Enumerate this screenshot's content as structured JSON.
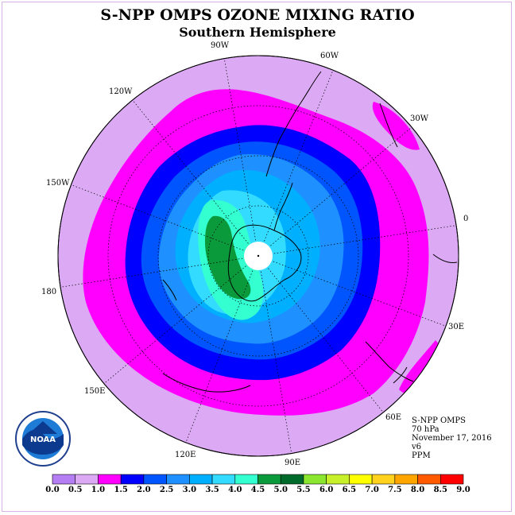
{
  "title": "S-NPP OMPS OZONE MIXING RATIO",
  "subtitle": "Southern Hemisphere",
  "longitude_labels": [
    "90W",
    "60W",
    "30W",
    "0",
    "30E",
    "60E",
    "90E",
    "120E",
    "150E",
    "180",
    "150W",
    "120W"
  ],
  "info": {
    "instrument": "S-NPP OMPS",
    "level": "70 hPa",
    "date": "November 17, 2016",
    "version": "v6",
    "units": "PPM"
  },
  "logo_text": "NOAA",
  "colorbar": {
    "ticks": [
      "0.0",
      "0.5",
      "1.0",
      "1.5",
      "2.0",
      "2.5",
      "3.0",
      "3.5",
      "4.0",
      "4.5",
      "5.0",
      "5.5",
      "6.0",
      "6.5",
      "7.0",
      "7.5",
      "8.0",
      "8.5",
      "9.0"
    ],
    "colors": [
      "#b57ef2",
      "#dcaaf5",
      "#ff00ff",
      "#0000ff",
      "#0055ff",
      "#1e90ff",
      "#00b0ff",
      "#33dcff",
      "#33ffd0",
      "#0a9a3c",
      "#006a2a",
      "#8ae62e",
      "#c8f02a",
      "#ffff00",
      "#ffd21e",
      "#ffa500",
      "#ff5a00",
      "#ff0000",
      "#8b5a3c"
    ]
  },
  "ring_colors": {
    "outer": "#dcaaf5",
    "level_1_0": "#ff00ff",
    "level_1_5": "#0000ff",
    "level_2_0": "#0055ff",
    "level_2_5": "#1e90ff",
    "level_3_0": "#00b0ff",
    "level_3_5": "#33dcff",
    "level_4_0": "#33ffd0",
    "level_4_5": "#0a9a3c"
  }
}
